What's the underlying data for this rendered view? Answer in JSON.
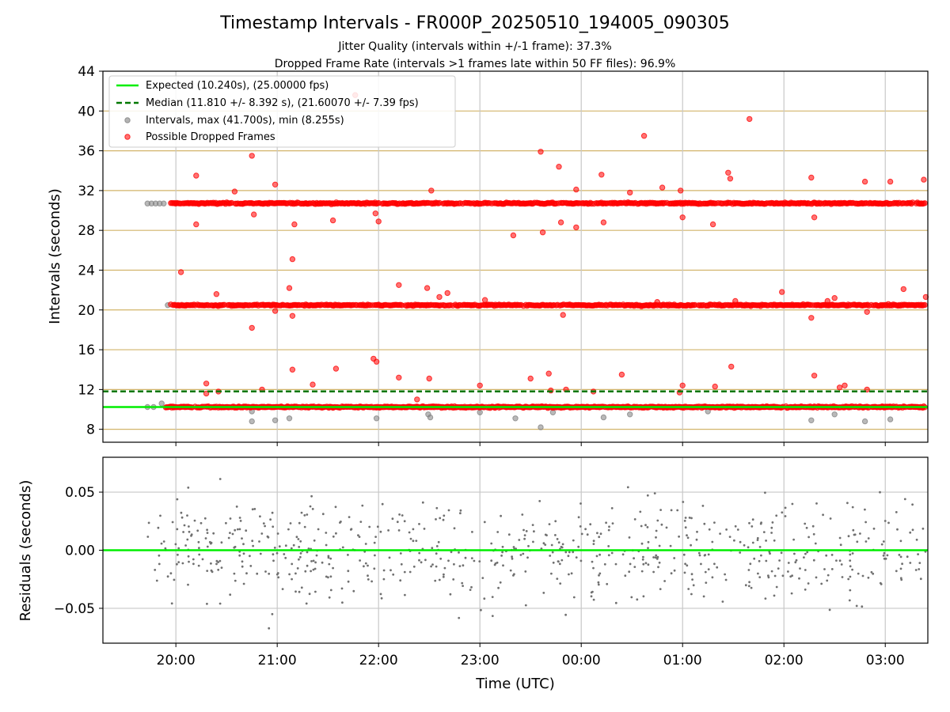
{
  "chart_data": {
    "type": "scatter",
    "title": "Timestamp Intervals - FR000P_20250510_194005_090305",
    "subtitle_lines": [
      "Jitter Quality (intervals within +/-1 frame): 37.3%",
      "Dropped Frame Rate (intervals >1 frames late within 50 FF files): 96.9%"
    ],
    "x_tick_labels": [
      "20:00",
      "21:00",
      "22:00",
      "23:00",
      "00:00",
      "01:00",
      "02:00",
      "03:00"
    ],
    "xlabel": "Time (UTC)",
    "top_panel": {
      "ylabel": "Intervals (seconds)",
      "ylim": [
        6.7,
        44
      ],
      "yticks": [
        8,
        12,
        16,
        20,
        24,
        28,
        32,
        36,
        40,
        44
      ],
      "grid": true,
      "legend_position": "upper-left",
      "legend": [
        "Expected (10.240s), (25.00000 fps)",
        "Median (11.810 +/- 8.392 s), (21.60070 +/- 7.39 fps)",
        "Intervals, max (41.700s), min (8.255s)",
        "Possible Dropped Frames"
      ],
      "expected_interval": 10.24,
      "median_interval": 11.81,
      "colors": {
        "expected": "#00ee00",
        "median": "#007700",
        "intervals": "#808080",
        "dropped": "#ff0000",
        "hgrid": "#d2b46a",
        "vgrid": "#c8c8c8"
      },
      "interval_bands": [
        10.24,
        20.48,
        30.72
      ],
      "gray_points": [
        {
          "x": 19.72,
          "y": 30.7
        },
        {
          "x": 19.76,
          "y": 30.7
        },
        {
          "x": 19.8,
          "y": 30.7
        },
        {
          "x": 19.84,
          "y": 30.7
        },
        {
          "x": 19.88,
          "y": 30.7
        },
        {
          "x": 19.72,
          "y": 10.24
        },
        {
          "x": 19.78,
          "y": 10.24
        },
        {
          "x": 19.86,
          "y": 10.6
        },
        {
          "x": 19.92,
          "y": 20.48
        },
        {
          "x": 20.75,
          "y": 8.8
        },
        {
          "x": 20.75,
          "y": 9.8
        },
        {
          "x": 20.98,
          "y": 8.9
        },
        {
          "x": 21.12,
          "y": 9.1
        },
        {
          "x": 21.98,
          "y": 9.1
        },
        {
          "x": 22.49,
          "y": 9.5
        },
        {
          "x": 22.51,
          "y": 9.2
        },
        {
          "x": 23.0,
          "y": 9.7
        },
        {
          "x": 23.35,
          "y": 9.1
        },
        {
          "x": 23.6,
          "y": 8.2
        },
        {
          "x": 23.72,
          "y": 9.7
        },
        {
          "x": 24.22,
          "y": 9.2
        },
        {
          "x": 24.48,
          "y": 9.5
        },
        {
          "x": 25.25,
          "y": 9.8
        },
        {
          "x": 26.27,
          "y": 8.9
        },
        {
          "x": 26.5,
          "y": 9.5
        },
        {
          "x": 26.8,
          "y": 8.8
        },
        {
          "x": 27.05,
          "y": 9.0
        }
      ],
      "dropped_bands": [
        {
          "y": 30.72,
          "x_start": 19.95,
          "x_end": 27.4,
          "step": 0.012
        },
        {
          "y": 20.48,
          "x_start": 19.95,
          "x_end": 27.4,
          "step": 0.012
        },
        {
          "y": 10.24,
          "x_start": 19.9,
          "x_end": 27.4,
          "step": 0.01
        }
      ],
      "dropped_outliers": [
        {
          "x": 20.05,
          "y": 23.8
        },
        {
          "x": 20.2,
          "y": 33.5
        },
        {
          "x": 20.2,
          "y": 28.6
        },
        {
          "x": 20.3,
          "y": 12.6
        },
        {
          "x": 20.3,
          "y": 11.6
        },
        {
          "x": 20.4,
          "y": 21.6
        },
        {
          "x": 20.42,
          "y": 11.8
        },
        {
          "x": 20.58,
          "y": 31.9
        },
        {
          "x": 20.75,
          "y": 35.5
        },
        {
          "x": 20.77,
          "y": 29.6
        },
        {
          "x": 20.75,
          "y": 18.2
        },
        {
          "x": 20.85,
          "y": 12.0
        },
        {
          "x": 20.98,
          "y": 32.6
        },
        {
          "x": 20.98,
          "y": 19.9
        },
        {
          "x": 21.12,
          "y": 22.2
        },
        {
          "x": 21.15,
          "y": 19.4
        },
        {
          "x": 21.15,
          "y": 25.1
        },
        {
          "x": 21.15,
          "y": 14.0
        },
        {
          "x": 21.17,
          "y": 28.6
        },
        {
          "x": 21.35,
          "y": 12.5
        },
        {
          "x": 21.55,
          "y": 29.0
        },
        {
          "x": 21.58,
          "y": 14.1
        },
        {
          "x": 21.77,
          "y": 41.6
        },
        {
          "x": 21.95,
          "y": 15.1
        },
        {
          "x": 21.98,
          "y": 14.8
        },
        {
          "x": 21.97,
          "y": 29.7
        },
        {
          "x": 22.0,
          "y": 28.9
        },
        {
          "x": 22.2,
          "y": 22.5
        },
        {
          "x": 22.2,
          "y": 13.2
        },
        {
          "x": 22.38,
          "y": 11.0
        },
        {
          "x": 22.48,
          "y": 22.2
        },
        {
          "x": 22.5,
          "y": 13.1
        },
        {
          "x": 22.52,
          "y": 32.0
        },
        {
          "x": 22.6,
          "y": 21.3
        },
        {
          "x": 22.68,
          "y": 21.7
        },
        {
          "x": 23.0,
          "y": 12.4
        },
        {
          "x": 23.05,
          "y": 21.0
        },
        {
          "x": 23.33,
          "y": 27.5
        },
        {
          "x": 23.5,
          "y": 13.1
        },
        {
          "x": 23.6,
          "y": 35.9
        },
        {
          "x": 23.62,
          "y": 27.8
        },
        {
          "x": 23.68,
          "y": 13.6
        },
        {
          "x": 23.7,
          "y": 11.9
        },
        {
          "x": 23.78,
          "y": 34.4
        },
        {
          "x": 23.8,
          "y": 28.8
        },
        {
          "x": 23.82,
          "y": 19.5
        },
        {
          "x": 23.85,
          "y": 12.0
        },
        {
          "x": 23.95,
          "y": 28.3
        },
        {
          "x": 23.95,
          "y": 32.1
        },
        {
          "x": 24.12,
          "y": 11.8
        },
        {
          "x": 24.2,
          "y": 33.6
        },
        {
          "x": 24.22,
          "y": 28.8
        },
        {
          "x": 24.4,
          "y": 13.5
        },
        {
          "x": 24.48,
          "y": 31.8
        },
        {
          "x": 24.62,
          "y": 37.5
        },
        {
          "x": 24.75,
          "y": 20.8
        },
        {
          "x": 24.8,
          "y": 32.3
        },
        {
          "x": 24.98,
          "y": 32.0
        },
        {
          "x": 25.0,
          "y": 29.3
        },
        {
          "x": 24.97,
          "y": 11.7
        },
        {
          "x": 25.0,
          "y": 12.4
        },
        {
          "x": 25.3,
          "y": 28.6
        },
        {
          "x": 25.32,
          "y": 12.3
        },
        {
          "x": 25.45,
          "y": 33.8
        },
        {
          "x": 25.47,
          "y": 33.2
        },
        {
          "x": 25.48,
          "y": 14.3
        },
        {
          "x": 25.52,
          "y": 20.9
        },
        {
          "x": 25.66,
          "y": 39.2
        },
        {
          "x": 25.98,
          "y": 21.8
        },
        {
          "x": 26.27,
          "y": 33.3
        },
        {
          "x": 26.3,
          "y": 29.3
        },
        {
          "x": 26.27,
          "y": 19.2
        },
        {
          "x": 26.3,
          "y": 13.4
        },
        {
          "x": 26.43,
          "y": 20.9
        },
        {
          "x": 26.5,
          "y": 21.2
        },
        {
          "x": 26.55,
          "y": 12.2
        },
        {
          "x": 26.6,
          "y": 12.4
        },
        {
          "x": 26.8,
          "y": 32.9
        },
        {
          "x": 26.82,
          "y": 19.8
        },
        {
          "x": 26.82,
          "y": 12.0
        },
        {
          "x": 27.05,
          "y": 32.9
        },
        {
          "x": 27.18,
          "y": 22.1
        },
        {
          "x": 27.38,
          "y": 33.1
        },
        {
          "x": 27.4,
          "y": 21.3
        }
      ]
    },
    "bottom_panel": {
      "ylabel": "Residuals (seconds)",
      "ylim": [
        -0.08,
        0.08
      ],
      "yticks": [
        0.05,
        0.0,
        -0.05
      ],
      "ytick_labels": [
        "0.05",
        "0.00",
        "−0.05"
      ],
      "grid": true,
      "zero_line_color": "#00ee00",
      "point_color": "#707070",
      "x_range": [
        19.7,
        27.4
      ],
      "point_count": 700,
      "spread": 0.03
    },
    "x_range": [
      19.28,
      27.42
    ]
  }
}
